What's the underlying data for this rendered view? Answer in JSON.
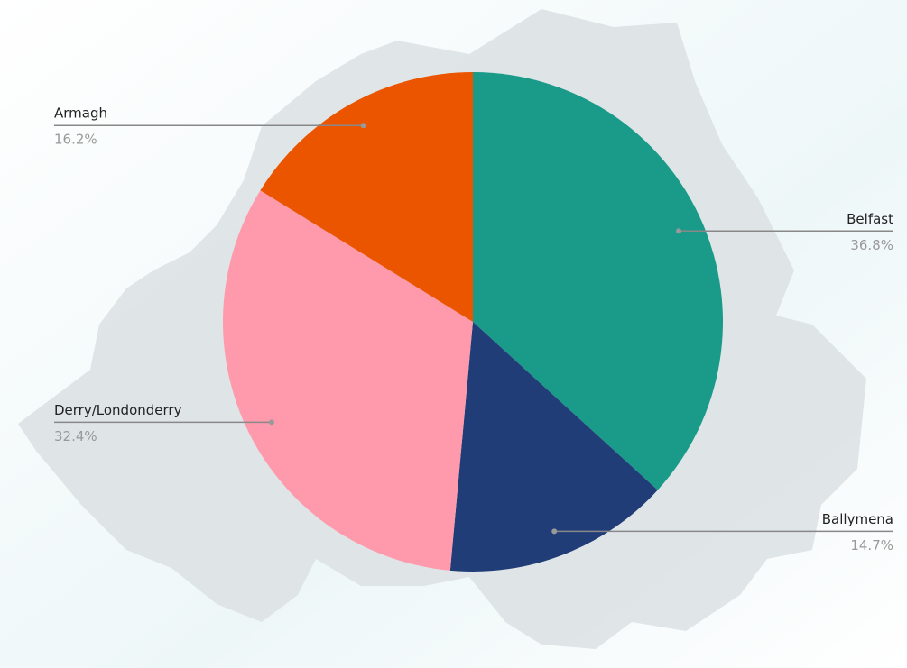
{
  "chart_data": {
    "type": "pie",
    "categories": [
      "Belfast",
      "Ballymena",
      "Derry/Londonderry",
      "Armagh"
    ],
    "values": [
      36.8,
      14.7,
      32.4,
      16.2
    ],
    "value_labels": [
      "36.8%",
      "14.7%",
      "32.4%",
      "16.2%"
    ],
    "colors": [
      "#1a9a88",
      "#213d78",
      "#ff99ac",
      "#eb5500"
    ]
  }
}
